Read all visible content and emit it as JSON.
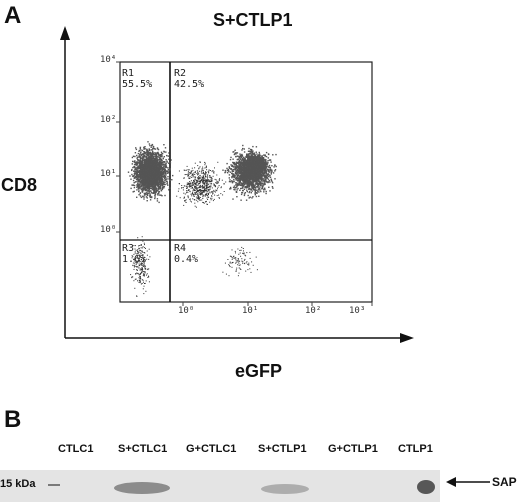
{
  "panel_a": {
    "label": "A",
    "title": "S+CTLP1",
    "ylabel": "CD8",
    "xlabel": "eGFP",
    "quadrants": [
      {
        "name": "R1",
        "percent": "55.5%"
      },
      {
        "name": "R2",
        "percent": "42.5%"
      },
      {
        "name": "R3",
        "percent": "1.6%"
      },
      {
        "name": "R4",
        "percent": "0.4%"
      }
    ],
    "y_ticks": [
      "10⁴",
      "10²",
      "10¹",
      "10⁰"
    ],
    "x_ticks": [
      "10⁰",
      "10¹",
      "10²",
      "10³"
    ]
  },
  "panel_b": {
    "label": "B",
    "lanes": [
      "CTLC1",
      "S+CTLC1",
      "G+CTLC1",
      "S+CTLP1",
      "G+CTLP1",
      "CTLP1"
    ],
    "marker": "15 kDa",
    "band_label": "SAP"
  }
}
